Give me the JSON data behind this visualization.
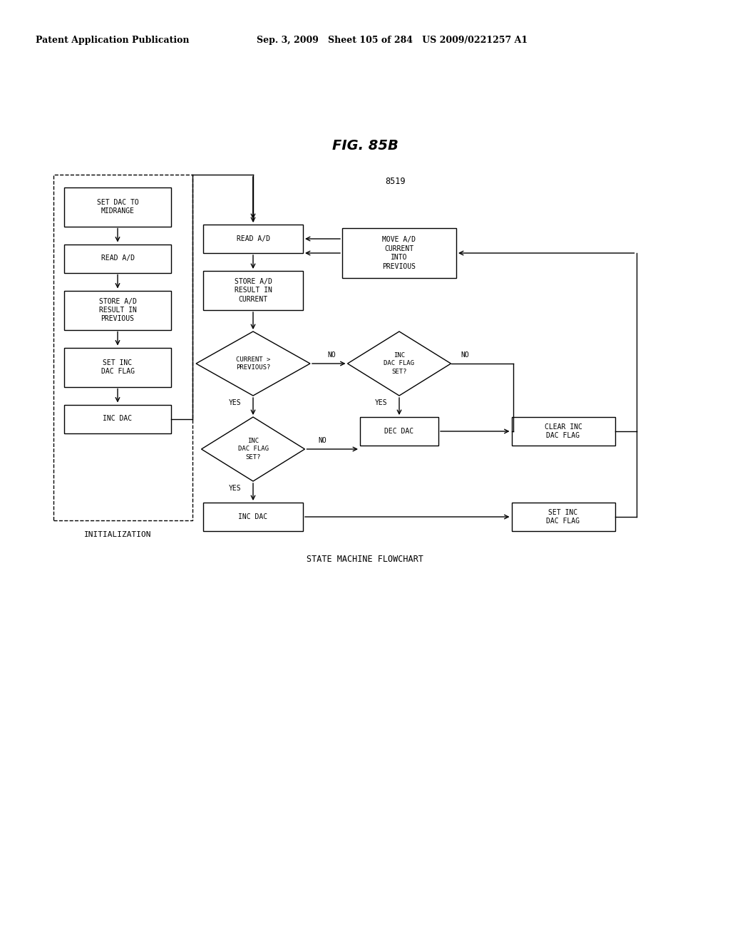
{
  "title": "FIG. 85B",
  "header_left": "Patent Application Publication",
  "header_right": "Sep. 3, 2009   Sheet 105 of 284   US 2009/0221257 A1",
  "label_8519": "8519",
  "label_init": "INITIALIZATION",
  "label_state": "STATE MACHINE FLOWCHART",
  "bg_color": "#ffffff",
  "text_color": "#000000"
}
